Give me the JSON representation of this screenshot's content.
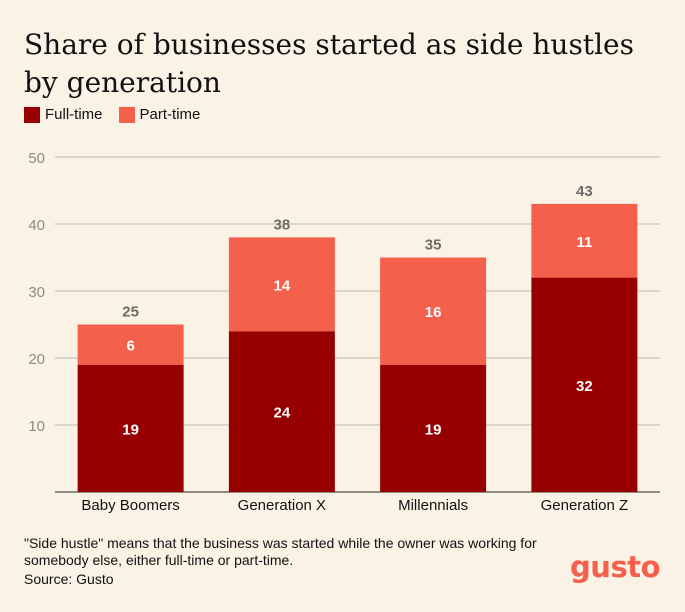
{
  "title": "Share of businesses started as side hustles by generation",
  "legend": [
    {
      "label": "Full-time",
      "color": "#960000"
    },
    {
      "label": "Part-time",
      "color": "#F4604C"
    }
  ],
  "footnote": "\"Side hustle\" means that the business was started while the owner was working for somebody else, either full-time or part-time.",
  "source": "Source: Gusto",
  "logo": {
    "text": "gusto",
    "color": "#F4604C"
  },
  "chart_data": {
    "type": "bar",
    "stacked": true,
    "categories": [
      "Baby Boomers",
      "Generation X",
      "Millennials",
      "Generation Z"
    ],
    "series": [
      {
        "name": "Full-time",
        "color": "#960000",
        "values": [
          19,
          24,
          19,
          32
        ]
      },
      {
        "name": "Part-time",
        "color": "#F4604C",
        "values": [
          6,
          14,
          16,
          11
        ]
      }
    ],
    "totals": [
      25,
      38,
      35,
      43
    ],
    "ylim": [
      0,
      50
    ],
    "yticks": [
      10,
      20,
      30,
      40,
      50
    ],
    "grid": true,
    "title": "Share of businesses started as side hustles by generation",
    "xlabel": "",
    "ylabel": "",
    "legend_position": "top-left"
  }
}
